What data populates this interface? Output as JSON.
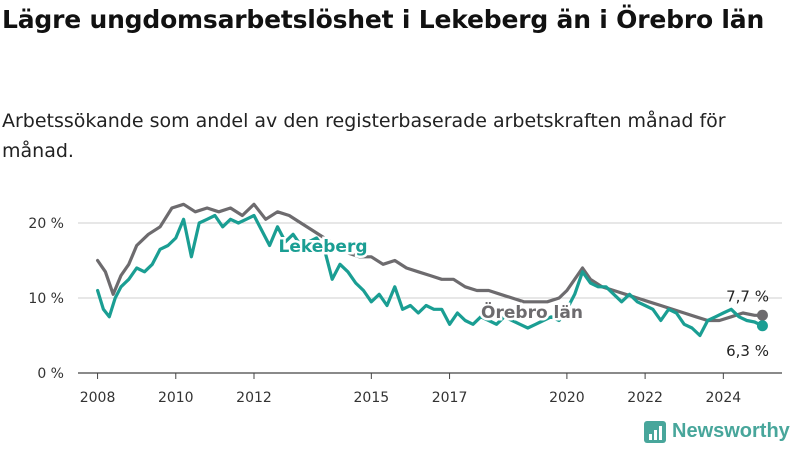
{
  "title": "Lägre ungdomsarbetslöshet i Lekeberg än i Örebro län",
  "subtitle": "Arbetssökande som andel av den registerbaserade arbetskraften månad för månad.",
  "logo": {
    "text": "Newsworthy",
    "icon": "bar-chart-icon"
  },
  "chart_data": {
    "type": "line",
    "xlim": [
      2007.5,
      2025.5
    ],
    "ylim": [
      0,
      22
    ],
    "x_ticks": [
      {
        "value": 2008,
        "label": "2008"
      },
      {
        "value": 2010,
        "label": "2010"
      },
      {
        "value": 2012,
        "label": "2012"
      },
      {
        "value": 2015,
        "label": "2015"
      },
      {
        "value": 2017,
        "label": "2017"
      },
      {
        "value": 2020,
        "label": "2020"
      },
      {
        "value": 2022,
        "label": "2022"
      },
      {
        "value": 2024,
        "label": "2024"
      }
    ],
    "y_ticks": [
      {
        "value": 0,
        "label": "0 %"
      },
      {
        "value": 10,
        "label": "10 %"
      },
      {
        "value": 20,
        "label": "20 %"
      }
    ],
    "grid": true,
    "series": [
      {
        "name": "Örebro län",
        "color": "#6d6b6e",
        "end_label": "7,7 %",
        "x": [
          2008.0,
          2008.2,
          2008.4,
          2008.6,
          2008.8,
          2009.0,
          2009.3,
          2009.6,
          2009.9,
          2010.2,
          2010.5,
          2010.8,
          2011.1,
          2011.4,
          2011.7,
          2012.0,
          2012.3,
          2012.6,
          2012.9,
          2013.2,
          2013.5,
          2013.8,
          2014.1,
          2014.4,
          2014.7,
          2015.0,
          2015.3,
          2015.6,
          2015.9,
          2016.2,
          2016.5,
          2016.8,
          2017.1,
          2017.4,
          2017.7,
          2018.0,
          2018.3,
          2018.6,
          2018.9,
          2019.2,
          2019.5,
          2019.8,
          2020.0,
          2020.2,
          2020.4,
          2020.6,
          2020.9,
          2021.2,
          2021.5,
          2021.8,
          2022.1,
          2022.4,
          2022.7,
          2023.0,
          2023.3,
          2023.6,
          2023.9,
          2024.2,
          2024.5,
          2024.8,
          2025.0
        ],
        "values": [
          15.0,
          13.5,
          10.5,
          13.0,
          14.5,
          17.0,
          18.5,
          19.5,
          22.0,
          22.5,
          21.5,
          22.0,
          21.5,
          22.0,
          21.0,
          22.5,
          20.5,
          21.5,
          21.0,
          20.0,
          19.0,
          18.0,
          17.0,
          16.0,
          15.5,
          15.5,
          14.5,
          15.0,
          14.0,
          13.5,
          13.0,
          12.5,
          12.5,
          11.5,
          11.0,
          11.0,
          10.5,
          10.0,
          9.5,
          9.5,
          9.5,
          10.0,
          11.0,
          12.5,
          14.0,
          12.5,
          11.5,
          11.0,
          10.5,
          10.0,
          9.5,
          9.0,
          8.5,
          8.0,
          7.5,
          7.0,
          7.0,
          7.5,
          8.0,
          7.7,
          7.7
        ]
      },
      {
        "name": "Lekeberg",
        "color": "#1a9e93",
        "end_label": "6,3 %",
        "x": [
          2008.0,
          2008.15,
          2008.3,
          2008.45,
          2008.6,
          2008.8,
          2009.0,
          2009.2,
          2009.4,
          2009.6,
          2009.8,
          2010.0,
          2010.2,
          2010.4,
          2010.6,
          2010.8,
          2011.0,
          2011.2,
          2011.4,
          2011.6,
          2011.8,
          2012.0,
          2012.2,
          2012.4,
          2012.6,
          2012.8,
          2013.0,
          2013.2,
          2013.4,
          2013.6,
          2013.8,
          2014.0,
          2014.2,
          2014.4,
          2014.6,
          2014.8,
          2015.0,
          2015.2,
          2015.4,
          2015.6,
          2015.8,
          2016.0,
          2016.2,
          2016.4,
          2016.6,
          2016.8,
          2017.0,
          2017.2,
          2017.4,
          2017.6,
          2017.8,
          2018.0,
          2018.2,
          2018.4,
          2018.6,
          2018.8,
          2019.0,
          2019.2,
          2019.4,
          2019.6,
          2019.8,
          2020.0,
          2020.2,
          2020.4,
          2020.6,
          2020.8,
          2021.0,
          2021.2,
          2021.4,
          2021.6,
          2021.8,
          2022.0,
          2022.2,
          2022.4,
          2022.6,
          2022.8,
          2023.0,
          2023.2,
          2023.4,
          2023.6,
          2023.8,
          2024.0,
          2024.2,
          2024.4,
          2024.6,
          2024.8,
          2025.0
        ],
        "values": [
          11.0,
          8.5,
          7.5,
          10.0,
          11.5,
          12.5,
          14.0,
          13.5,
          14.5,
          16.5,
          17.0,
          18.0,
          20.5,
          15.5,
          20.0,
          20.5,
          21.0,
          19.5,
          20.5,
          20.0,
          20.5,
          21.0,
          19.0,
          17.0,
          19.5,
          17.5,
          18.5,
          17.0,
          17.5,
          18.0,
          16.5,
          12.5,
          14.5,
          13.5,
          12.0,
          11.0,
          9.5,
          10.5,
          9.0,
          11.5,
          8.5,
          9.0,
          8.0,
          9.0,
          8.5,
          8.5,
          6.5,
          8.0,
          7.0,
          6.5,
          7.5,
          7.0,
          6.5,
          7.5,
          7.0,
          6.5,
          6.0,
          6.5,
          7.0,
          7.5,
          7.0,
          8.5,
          10.5,
          13.5,
          12.0,
          11.5,
          11.5,
          10.5,
          9.5,
          10.5,
          9.5,
          9.0,
          8.5,
          7.0,
          8.5,
          8.0,
          6.5,
          6.0,
          5.0,
          7.0,
          7.5,
          8.0,
          8.5,
          7.5,
          7.0,
          6.8,
          6.3
        ]
      }
    ]
  }
}
